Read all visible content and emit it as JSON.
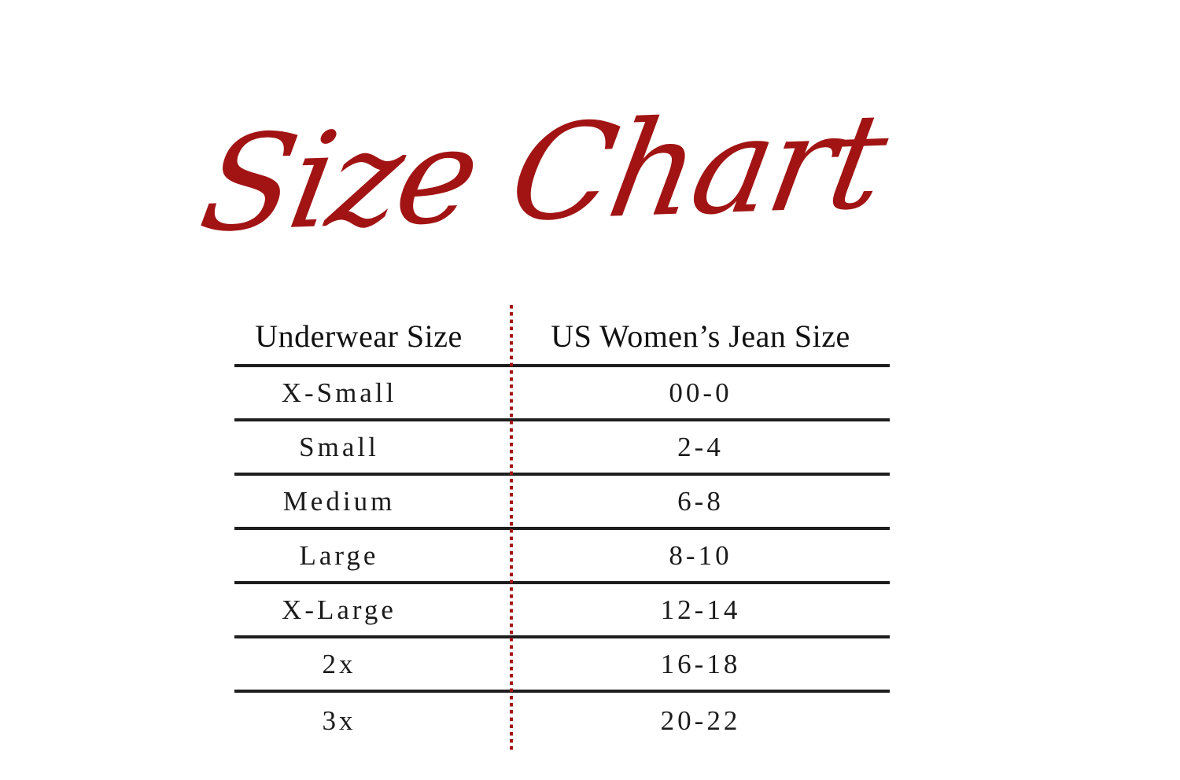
{
  "title": "Size Chart",
  "colors": {
    "accent_red": "#A21414",
    "rule_black": "#1E1E1E",
    "text_black": "#141414",
    "background": "#FFFFFF"
  },
  "chart_data": {
    "type": "table",
    "title": "Size Chart",
    "columns": [
      "Underwear Size",
      "US Women’s Jean Size"
    ],
    "rows": [
      {
        "underwear": "X-Small",
        "jean": "00-0"
      },
      {
        "underwear": "Small",
        "jean": "2-4"
      },
      {
        "underwear": "Medium",
        "jean": "6-8"
      },
      {
        "underwear": "Large",
        "jean": "8-10"
      },
      {
        "underwear": "X-Large",
        "jean": "12-14"
      },
      {
        "underwear": "2x",
        "jean": "16-18"
      },
      {
        "underwear": "3x",
        "jean": "20-22"
      }
    ],
    "layout": {
      "column_divider": "red-dotted-vertical-line",
      "row_separators": "solid-black-horizontal-lines",
      "last_row_has_bottom_border": false
    }
  }
}
